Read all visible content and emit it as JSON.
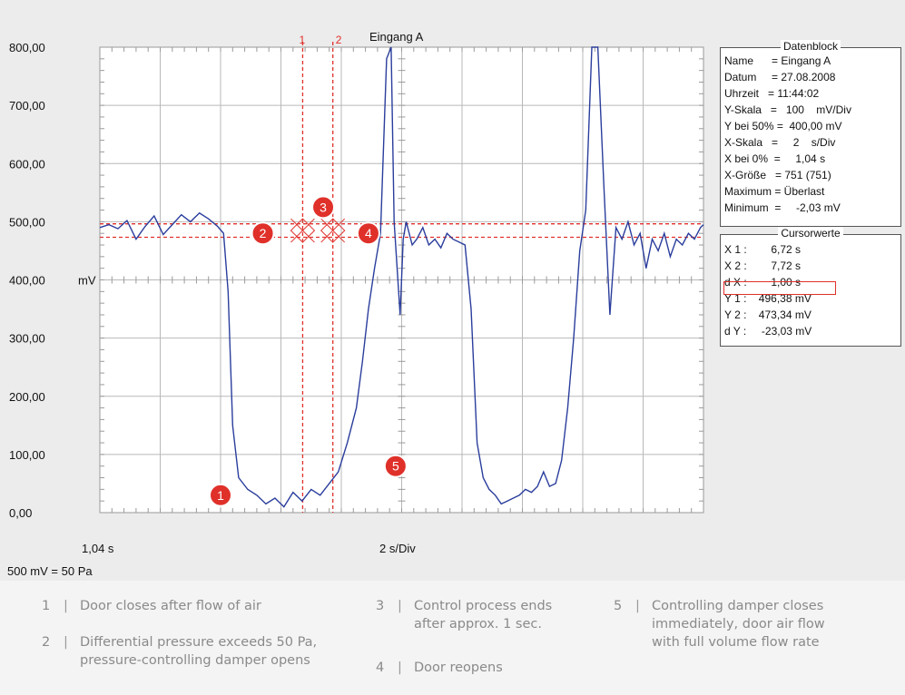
{
  "chart_data": {
    "type": "line",
    "title": "Eingang A",
    "y_unit_label": "mV",
    "ylim": [
      0,
      800
    ],
    "xlim": [
      0,
      20
    ],
    "y_ticks": [
      "0,00",
      "100,00",
      "200,00",
      "300,00",
      "400,00",
      "500,00",
      "600,00",
      "700,00",
      "800,00"
    ],
    "x_start_label": "1,04 s",
    "x_scale_label": "2 s/Div",
    "footnote": "500 mV = 50 Pa",
    "series": [
      {
        "color": "#2a3d9c",
        "x": [
          0,
          0.3,
          0.6,
          0.9,
          1.2,
          1.5,
          1.8,
          2.1,
          2.4,
          2.7,
          3.0,
          3.3,
          3.6,
          3.9,
          4.1,
          4.25,
          4.4,
          4.6,
          4.9,
          5.2,
          5.5,
          5.8,
          6.1,
          6.4,
          6.7,
          7.0,
          7.3,
          7.6,
          7.9,
          8.2,
          8.5,
          8.7,
          8.9,
          9.1,
          9.3,
          9.5,
          9.65,
          9.75,
          9.85,
          9.95,
          10.05,
          10.15,
          10.25,
          10.35,
          10.5,
          10.7,
          10.9,
          11.1,
          11.3,
          11.5,
          11.7,
          11.9,
          12.1,
          12.3,
          12.5,
          12.7,
          12.9,
          13.1,
          13.3,
          13.5,
          13.7,
          13.9,
          14.1,
          14.3,
          14.5,
          14.7,
          14.9,
          15.1,
          15.3,
          15.5,
          15.7,
          15.9,
          16.1,
          16.3,
          16.5,
          16.7,
          16.9,
          17.1,
          17.3,
          17.5,
          17.7,
          17.9,
          18.1,
          18.3,
          18.5,
          18.7,
          18.9,
          19.1,
          19.3,
          19.5,
          19.7,
          19.9,
          20.0
        ],
        "values": [
          490,
          495,
          488,
          502,
          470,
          492,
          510,
          478,
          495,
          512,
          500,
          515,
          505,
          492,
          480,
          380,
          150,
          60,
          40,
          30,
          15,
          25,
          10,
          35,
          20,
          40,
          30,
          50,
          70,
          120,
          180,
          260,
          350,
          420,
          480,
          780,
          800,
          500,
          420,
          340,
          470,
          500,
          480,
          460,
          470,
          490,
          460,
          470,
          455,
          480,
          470,
          465,
          460,
          350,
          120,
          60,
          40,
          30,
          15,
          20,
          25,
          30,
          40,
          35,
          45,
          70,
          45,
          50,
          90,
          180,
          300,
          450,
          520,
          800,
          800,
          560,
          340,
          490,
          470,
          500,
          460,
          480,
          420,
          470,
          450,
          480,
          440,
          470,
          460,
          480,
          470,
          490,
          495
        ]
      }
    ],
    "cursors": {
      "x1": 6.72,
      "x2": 7.72,
      "y1": 496.38,
      "y2": 473.34,
      "x1_label": "1",
      "x2_label": "2",
      "color": "#e0302a"
    },
    "markers": [
      {
        "label": "1",
        "x": 4.0,
        "y": 30
      },
      {
        "label": "2",
        "x": 5.4,
        "y": 480
      },
      {
        "label": "3",
        "x": 7.4,
        "y": 525
      },
      {
        "label": "4",
        "x": 8.9,
        "y": 480
      },
      {
        "label": "5",
        "x": 9.8,
        "y": 80
      }
    ],
    "marker_color": "#e0302a"
  },
  "datablock": {
    "title": "Datenblock",
    "rows": [
      "Name      = Eingang A",
      "Datum     = 27.08.2008",
      "Uhrzeit   = 11:44:02",
      "Y-Skala   =   100    mV/Div",
      "Y bei 50% =  400,00 mV",
      "X-Skala   =     2    s/Div",
      "X bei 0%  =     1,04 s",
      "X-Größe   = 751 (751)",
      "Maximum = Überlast",
      "Minimum  =     -2,03 mV"
    ]
  },
  "cursorblock": {
    "title": "Cursorwerte",
    "rows": [
      "X 1 :        6,72 s",
      "X 2 :        7,72 s",
      "d X :        1,00 s",
      "Y 1 :    496,38 mV",
      "Y 2 :    473,34 mV",
      "d Y :     -23,03 mV"
    ]
  },
  "legend": [
    {
      "num": "1",
      "text": "Door closes after flow of air"
    },
    {
      "num": "2",
      "text": "Differential pressure exceeds 50 Pa,\npressure-controlling damper opens"
    },
    {
      "num": "3",
      "text": "Control process ends\nafter approx. 1 sec."
    },
    {
      "num": "4",
      "text": "Door reopens"
    },
    {
      "num": "5",
      "text": "Controlling damper closes\nimmediately, door air flow\nwith full volume flow rate"
    }
  ]
}
